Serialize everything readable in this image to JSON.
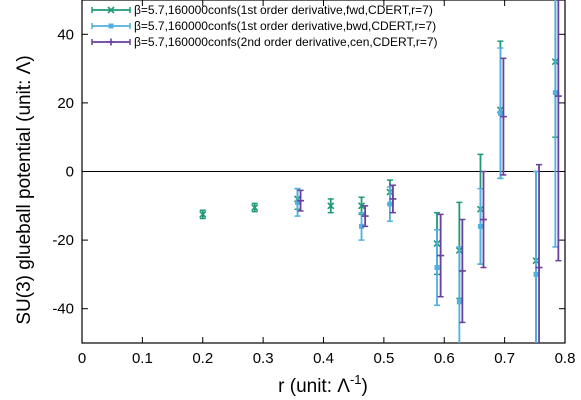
{
  "chart_data": {
    "type": "scatter",
    "xlabel": "r (unit: Λ",
    "xlabel_sup": "-1",
    "xlabel_close": ")",
    "ylabel": "SU(3) glueball potential (unit: Λ)",
    "xlim": [
      0,
      0.8
    ],
    "ylim": [
      -50,
      50
    ],
    "x_ticks": [
      "0",
      "0.1",
      "0.2",
      "0.3",
      "0.4",
      "0.5",
      "0.6",
      "0.7",
      "0.8"
    ],
    "y_ticks": [
      "-40",
      "-20",
      "0",
      "20",
      "40"
    ],
    "legend_position": "top-right",
    "series": [
      {
        "name": "β=5.7,160000confs(1st order derivative,fwd,CDERT,r=7)",
        "color": "#1e9a78",
        "marker": "x",
        "points": [
          {
            "x": 0.2,
            "y": -12.5,
            "err": 1.2
          },
          {
            "x": 0.286,
            "y": -10.5,
            "err": 1.2
          },
          {
            "x": 0.357,
            "y": -8.0,
            "err": 3.0
          },
          {
            "x": 0.412,
            "y": -10.0,
            "err": 2.0
          },
          {
            "x": 0.463,
            "y": -10.0,
            "err": 2.5
          },
          {
            "x": 0.51,
            "y": -6.0,
            "err": 3.5
          },
          {
            "x": 0.588,
            "y": -21.0,
            "err": 9.0
          },
          {
            "x": 0.625,
            "y": -23.0,
            "err": 14.0
          },
          {
            "x": 0.66,
            "y": -11.0,
            "err": 16.0
          },
          {
            "x": 0.693,
            "y": 18.0,
            "err": 20.0
          },
          {
            "x": 0.752,
            "y": -26.0,
            "err": 26.0
          },
          {
            "x": 0.784,
            "y": 32.0,
            "err": 22.0
          }
        ]
      },
      {
        "name": "β=5.7,160000confs(1st order derivative,bwd,CDERT,r=7)",
        "color": "#4fb1e0",
        "marker": "square",
        "points": [
          {
            "x": 0.357,
            "y": -9.0,
            "err": 4.0
          },
          {
            "x": 0.463,
            "y": -16.0,
            "err": 4.0
          },
          {
            "x": 0.51,
            "y": -9.5,
            "err": 5.0
          },
          {
            "x": 0.588,
            "y": -28.0,
            "err": 11.0
          },
          {
            "x": 0.625,
            "y": -38.0,
            "err": 16.0
          },
          {
            "x": 0.66,
            "y": -16.0,
            "err": 11.0
          },
          {
            "x": 0.693,
            "y": 17.0,
            "err": 19.0
          },
          {
            "x": 0.752,
            "y": -30.0,
            "err": 30.0
          },
          {
            "x": 0.784,
            "y": 23.0,
            "err": 45.0
          }
        ]
      },
      {
        "name": "β=5.7,160000confs(2nd order derivative,cen,CDERT,r=7)",
        "color": "#6a3fa0",
        "marker": "plus",
        "points": [
          {
            "x": 0.362,
            "y": -8.5,
            "err": 3.0
          },
          {
            "x": 0.469,
            "y": -13.0,
            "err": 3.0
          },
          {
            "x": 0.515,
            "y": -8.0,
            "err": 4.0
          },
          {
            "x": 0.594,
            "y": -24.5,
            "err": 12.0
          },
          {
            "x": 0.63,
            "y": -29.0,
            "err": 15.0
          },
          {
            "x": 0.665,
            "y": -14.0,
            "err": 14.0
          },
          {
            "x": 0.698,
            "y": 16.0,
            "err": 17.0
          },
          {
            "x": 0.757,
            "y": -28.0,
            "err": 30.0
          },
          {
            "x": 0.789,
            "y": 22.0,
            "err": 48.0
          }
        ]
      }
    ]
  }
}
